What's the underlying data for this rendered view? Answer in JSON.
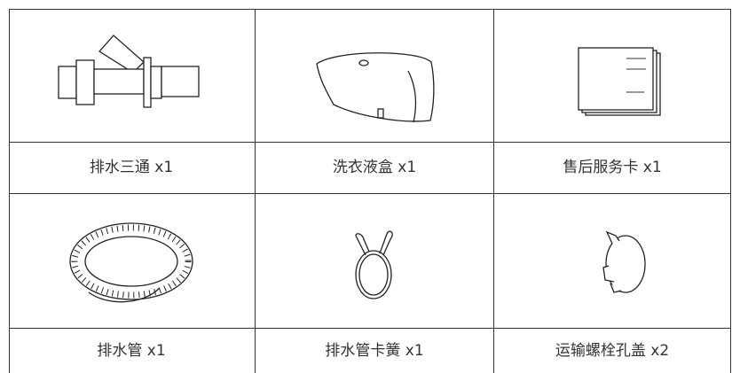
{
  "items": [
    {
      "label": "排水三通 x1"
    },
    {
      "label": "洗衣液盒 x1"
    },
    {
      "label": "售后服务卡 x1"
    },
    {
      "label": "排水管 x1"
    },
    {
      "label": "排水管卡簧 x1"
    },
    {
      "label": "运输螺栓孔盖 x2"
    }
  ]
}
